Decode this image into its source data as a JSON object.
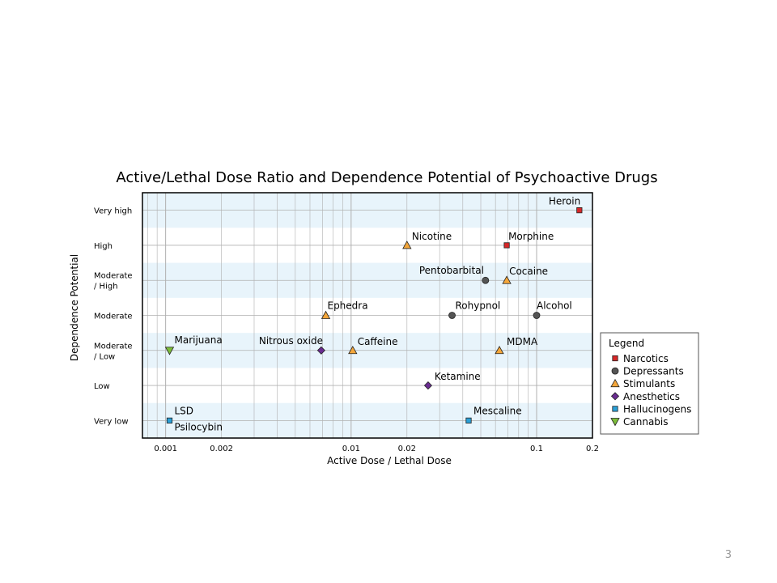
{
  "page_number": "3",
  "colors": {
    "band": "#e8f4fb",
    "grid": "#b0b0b0",
    "Narcotics": "#d62728",
    "Depressants": "#555555",
    "Stimulants": "#f4a63a",
    "Anesthetics": "#6a2c91",
    "Hallucinogens": "#2a9fd6",
    "Cannabis": "#7cbd3a"
  },
  "chart_data": {
    "type": "scatter",
    "title": "Active/Lethal Dose Ratio and Dependence Potential of Psychoactive Drugs",
    "xlabel": "Active Dose / Lethal Dose",
    "ylabel": "Dependence Potential",
    "x_scale": "log",
    "xlim": [
      0.00075,
      0.2
    ],
    "x_ticks": [
      0.001,
      0.002,
      0.01,
      0.02,
      0.1,
      0.2
    ],
    "x_tick_labels": [
      "0.001",
      "0.002",
      "0.01",
      "0.02",
      "0.1",
      "0.2"
    ],
    "y_categories": [
      "Very low",
      "Low",
      "Moderate / Low",
      "Moderate",
      "Moderate / High",
      "High",
      "Very high"
    ],
    "grid": true,
    "legend_title": "Legend",
    "legend_position": "right",
    "series": [
      {
        "name": "Narcotics",
        "marker": "square",
        "points": [
          {
            "label": "Heroin",
            "x": 0.17,
            "y": "Very high"
          },
          {
            "label": "Morphine",
            "x": 0.069,
            "y": "High"
          }
        ]
      },
      {
        "name": "Depressants",
        "marker": "circle",
        "points": [
          {
            "label": "Pentobarbital",
            "x": 0.053,
            "y": "Moderate / High"
          },
          {
            "label": "Rohypnol",
            "x": 0.035,
            "y": "Moderate"
          },
          {
            "label": "Alcohol",
            "x": 0.1,
            "y": "Moderate"
          }
        ]
      },
      {
        "name": "Stimulants",
        "marker": "triangle-up",
        "points": [
          {
            "label": "Nicotine",
            "x": 0.02,
            "y": "High"
          },
          {
            "label": "Cocaine",
            "x": 0.069,
            "y": "Moderate / High"
          },
          {
            "label": "Ephedra",
            "x": 0.0073,
            "y": "Moderate"
          },
          {
            "label": "Caffeine",
            "x": 0.0102,
            "y": "Moderate / Low"
          },
          {
            "label": "MDMA",
            "x": 0.063,
            "y": "Moderate / Low"
          }
        ]
      },
      {
        "name": "Anesthetics",
        "marker": "diamond",
        "points": [
          {
            "label": "Nitrous oxide",
            "x": 0.0069,
            "y": "Moderate / Low"
          },
          {
            "label": "Ketamine",
            "x": 0.026,
            "y": "Low"
          }
        ]
      },
      {
        "name": "Hallucinogens",
        "marker": "square",
        "points": [
          {
            "label": "LSD",
            "x": 0.00105,
            "y": "Very low"
          },
          {
            "label": "Psilocybin",
            "x": 0.00105,
            "y": "Very low"
          },
          {
            "label": "Mescaline",
            "x": 0.043,
            "y": "Very low"
          }
        ]
      },
      {
        "name": "Cannabis",
        "marker": "triangle-down",
        "points": [
          {
            "label": "Marijuana",
            "x": 0.00105,
            "y": "Moderate / Low"
          }
        ]
      }
    ]
  }
}
